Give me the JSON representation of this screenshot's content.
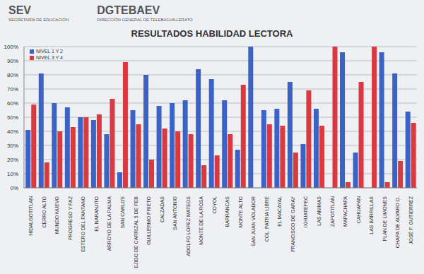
{
  "header": {
    "left": {
      "title": "SEV",
      "subtitle": "SECRETARÍA DE EDUCACIÓN"
    },
    "center": {
      "title": "DGTEBAEV",
      "subtitle": "DIRECCIÓN GENERAL DE TELEBACHILLERATO"
    }
  },
  "chart_data": {
    "type": "bar",
    "title": "RESULTADOS HABILIDAD LECTORA",
    "categories": [
      "HIDALGOTITLAN",
      "CERRO ALTO",
      "MUNDO NUEVO",
      "PROGRESO Y PAZ",
      "ESTERO DEL PANTANO",
      "EL NARANJITO",
      "ARROYO DE LA PALMA",
      "SAN CARLOS",
      "EJIDO DE CARRIZAL 5 DE FEB",
      "GUILLERMO PRIETO",
      "CALZADAS",
      "SAN ANTONIO",
      "ADOLFO LOPEZ MATEOS",
      "MONTE DE LA ROSA",
      "COYOL",
      "BARRANCAS",
      "MONTE ALTO",
      "SAN JUAN VOLADOR",
      "COL. PATRIA LIBRE",
      "EL MACAYAL",
      "FRANCISCO DE GARAY",
      "IXHUATEPEC",
      "LAS ANIMAS",
      "ZAPOTITLAN",
      "MAPACHAPA",
      "CAHUAPAN",
      "LAS BARRILLAS",
      "PLAN DE LIMONES",
      "CHAPA DE ALVARO O.",
      "JOSÉ F. GUTIERREZ"
    ],
    "series": [
      {
        "name": "NIVEL 1 Y 2",
        "color": "#3b63c6",
        "values": [
          41,
          81,
          60,
          57,
          50,
          48,
          38,
          11,
          55,
          80,
          58,
          60,
          62,
          84,
          77,
          62,
          27,
          100,
          55,
          56,
          75,
          31,
          56,
          0,
          96,
          25,
          0,
          96,
          81,
          54
        ]
      },
      {
        "name": "NIVEL 3 Y 4",
        "color": "#d93a3f",
        "values": [
          59,
          18,
          40,
          43,
          50,
          52,
          63,
          89,
          45,
          20,
          42,
          40,
          38,
          16,
          23,
          38,
          73,
          0,
          45,
          44,
          25,
          69,
          44,
          100,
          4,
          75,
          100,
          4,
          19,
          46
        ]
      }
    ],
    "ylim": [
      0,
      100
    ],
    "yticks": [
      {
        "value": 0,
        "label": "0%"
      },
      {
        "value": 10,
        "label": "10%"
      },
      {
        "value": 20,
        "label": "20%"
      },
      {
        "value": 30,
        "label": "30%"
      },
      {
        "value": 40,
        "label": "40%"
      },
      {
        "value": 50,
        "label": "50%"
      },
      {
        "value": 60,
        "label": "60%"
      },
      {
        "value": 70,
        "label": "70%"
      },
      {
        "value": 80,
        "label": "80%"
      },
      {
        "value": 90,
        "label": "90%"
      },
      {
        "value": 100,
        "label": "100%"
      }
    ],
    "grid": true,
    "legend": "top-left"
  }
}
